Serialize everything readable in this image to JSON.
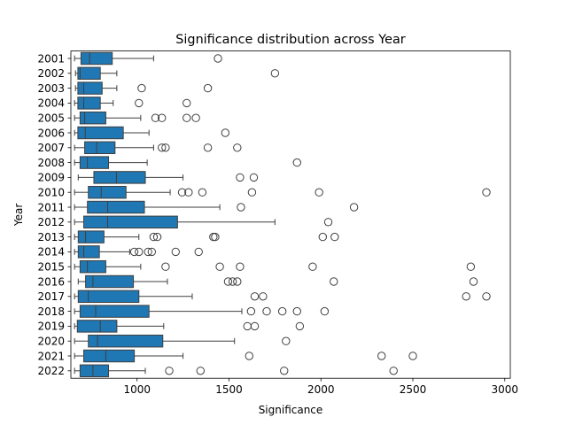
{
  "chart_data": {
    "type": "boxplot",
    "orientation": "horizontal",
    "title": "Significance distribution across Year",
    "xlabel": "Significance",
    "ylabel": "Year",
    "xlim": [
      640,
      3030
    ],
    "xticks": [
      1000,
      1500,
      2000,
      2500,
      3000
    ],
    "grid": false,
    "box_color": "#1f77b4",
    "categories": [
      "2001",
      "2002",
      "2003",
      "2004",
      "2005",
      "2006",
      "2007",
      "2008",
      "2009",
      "2010",
      "2011",
      "2012",
      "2013",
      "2014",
      "2015",
      "2016",
      "2017",
      "2018",
      "2019",
      "2020",
      "2021",
      "2022"
    ],
    "series": [
      {
        "category": "2001",
        "whislo": 660,
        "q1": 695,
        "median": 742,
        "q3": 865,
        "whishi": 1090,
        "fliers": [
          1440
        ]
      },
      {
        "category": "2002",
        "whislo": 665,
        "q1": 678,
        "median": 690,
        "q3": 800,
        "whishi": 890,
        "fliers": [
          1750
        ]
      },
      {
        "category": "2003",
        "whislo": 665,
        "q1": 678,
        "median": 710,
        "q3": 810,
        "whishi": 890,
        "fliers": [
          1025,
          1385
        ]
      },
      {
        "category": "2004",
        "whislo": 660,
        "q1": 678,
        "median": 710,
        "q3": 800,
        "whishi": 870,
        "fliers": [
          1010,
          1270
        ]
      },
      {
        "category": "2005",
        "whislo": 660,
        "q1": 690,
        "median": 715,
        "q3": 830,
        "whishi": 1020,
        "fliers": [
          1100,
          1135,
          1270,
          1320
        ]
      },
      {
        "category": "2006",
        "whislo": 660,
        "q1": 678,
        "median": 718,
        "q3": 925,
        "whishi": 1065,
        "fliers": [
          1480
        ]
      },
      {
        "category": "2007",
        "whislo": 660,
        "q1": 715,
        "median": 780,
        "q3": 880,
        "whishi": 1090,
        "fliers": [
          1135,
          1155,
          1385,
          1545
        ]
      },
      {
        "category": "2008",
        "whislo": 660,
        "q1": 690,
        "median": 730,
        "q3": 845,
        "whishi": 1055,
        "fliers": [
          1870
        ]
      },
      {
        "category": "2009",
        "whislo": 680,
        "q1": 765,
        "median": 888,
        "q3": 1045,
        "whishi": 1250,
        "fliers": [
          1560,
          1635
        ]
      },
      {
        "category": "2010",
        "whislo": 660,
        "q1": 735,
        "median": 805,
        "q3": 940,
        "whishi": 1180,
        "fliers": [
          1245,
          1280,
          1355,
          1625,
          1990,
          2900
        ]
      },
      {
        "category": "2011",
        "whislo": 660,
        "q1": 730,
        "median": 840,
        "q3": 1040,
        "whishi": 1450,
        "fliers": [
          1565,
          2180
        ]
      },
      {
        "category": "2012",
        "whislo": 660,
        "q1": 710,
        "median": 840,
        "q3": 1220,
        "whishi": 1750,
        "fliers": [
          2040
        ]
      },
      {
        "category": "2013",
        "whislo": 660,
        "q1": 680,
        "median": 720,
        "q3": 820,
        "whishi": 1010,
        "fliers": [
          1090,
          1110,
          1415,
          1425,
          2010,
          2075
        ]
      },
      {
        "category": "2014",
        "whislo": 660,
        "q1": 680,
        "median": 710,
        "q3": 795,
        "whishi": 960,
        "fliers": [
          985,
          1010,
          1060,
          1080,
          1210,
          1335
        ]
      },
      {
        "category": "2015",
        "whislo": 660,
        "q1": 690,
        "median": 730,
        "q3": 830,
        "whishi": 1020,
        "fliers": [
          1155,
          1450,
          1560,
          1955,
          2815
        ]
      },
      {
        "category": "2016",
        "whislo": 680,
        "q1": 720,
        "median": 760,
        "q3": 980,
        "whishi": 1165,
        "fliers": [
          1495,
          1520,
          1545,
          2070,
          2830
        ]
      },
      {
        "category": "2017",
        "whislo": 660,
        "q1": 680,
        "median": 735,
        "q3": 1010,
        "whishi": 1300,
        "fliers": [
          1640,
          1685,
          2790,
          2900
        ]
      },
      {
        "category": "2018",
        "whislo": 660,
        "q1": 690,
        "median": 775,
        "q3": 1065,
        "whishi": 1570,
        "fliers": [
          1620,
          1705,
          1790,
          1870,
          2020
        ]
      },
      {
        "category": "2019",
        "whislo": 660,
        "q1": 675,
        "median": 800,
        "q3": 890,
        "whishi": 1145,
        "fliers": [
          1600,
          1640,
          1885
        ]
      },
      {
        "category": "2020",
        "whislo": 660,
        "q1": 735,
        "median": 785,
        "q3": 1140,
        "whishi": 1530,
        "fliers": [
          1810
        ]
      },
      {
        "category": "2021",
        "whislo": 660,
        "q1": 710,
        "median": 830,
        "q3": 985,
        "whishi": 1250,
        "fliers": [
          1610,
          2330,
          2500
        ]
      },
      {
        "category": "2022",
        "whislo": 660,
        "q1": 690,
        "median": 760,
        "q3": 845,
        "whishi": 1045,
        "fliers": [
          1175,
          1345,
          1800,
          2395
        ]
      }
    ]
  }
}
